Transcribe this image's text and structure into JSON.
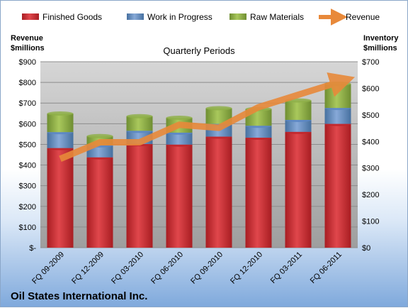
{
  "chart_data": {
    "type": "bar",
    "subtitle": "Quarterly Periods",
    "company": "Oil States International Inc.",
    "categories": [
      "FQ 09-2009",
      "FQ 12-2009",
      "FQ 03-2010",
      "FQ 06-2010",
      "FQ 09-2010",
      "FQ 12-2010",
      "FQ 03-2011",
      "FQ 06-2011"
    ],
    "stacked_series": [
      {
        "name": "Finished Goods",
        "color": "#c0262c",
        "values": [
          375,
          340,
          390,
          388,
          418,
          414,
          436,
          466
        ]
      },
      {
        "name": "Work in Progress",
        "color": "#5b86c4",
        "values": [
          60,
          45,
          50,
          45,
          48,
          45,
          45,
          60
        ]
      },
      {
        "name": "Raw Materials",
        "color": "#8fb04a",
        "values": [
          70,
          35,
          55,
          56,
          59,
          63,
          73,
          91
        ]
      }
    ],
    "line_series": {
      "name": "Revenue",
      "color": "#e8893a",
      "values": [
        430,
        510,
        510,
        595,
        580,
        680,
        740,
        800
      ]
    },
    "left_axis": {
      "title": [
        "Revenue",
        "$millions"
      ],
      "min": 0,
      "max": 900,
      "step": 100,
      "tick_labels": [
        "$-",
        "$100",
        "$200",
        "$300",
        "$400",
        "$500",
        "$600",
        "$700",
        "$800",
        "$900"
      ]
    },
    "right_axis": {
      "title": [
        "Inventory",
        "$millions"
      ],
      "min": 0,
      "max": 700,
      "step": 100,
      "tick_labels": [
        "$0",
        "$100",
        "$200",
        "$300",
        "$400",
        "$500",
        "$600",
        "$700"
      ]
    },
    "grid": true,
    "legend_position": "top"
  }
}
